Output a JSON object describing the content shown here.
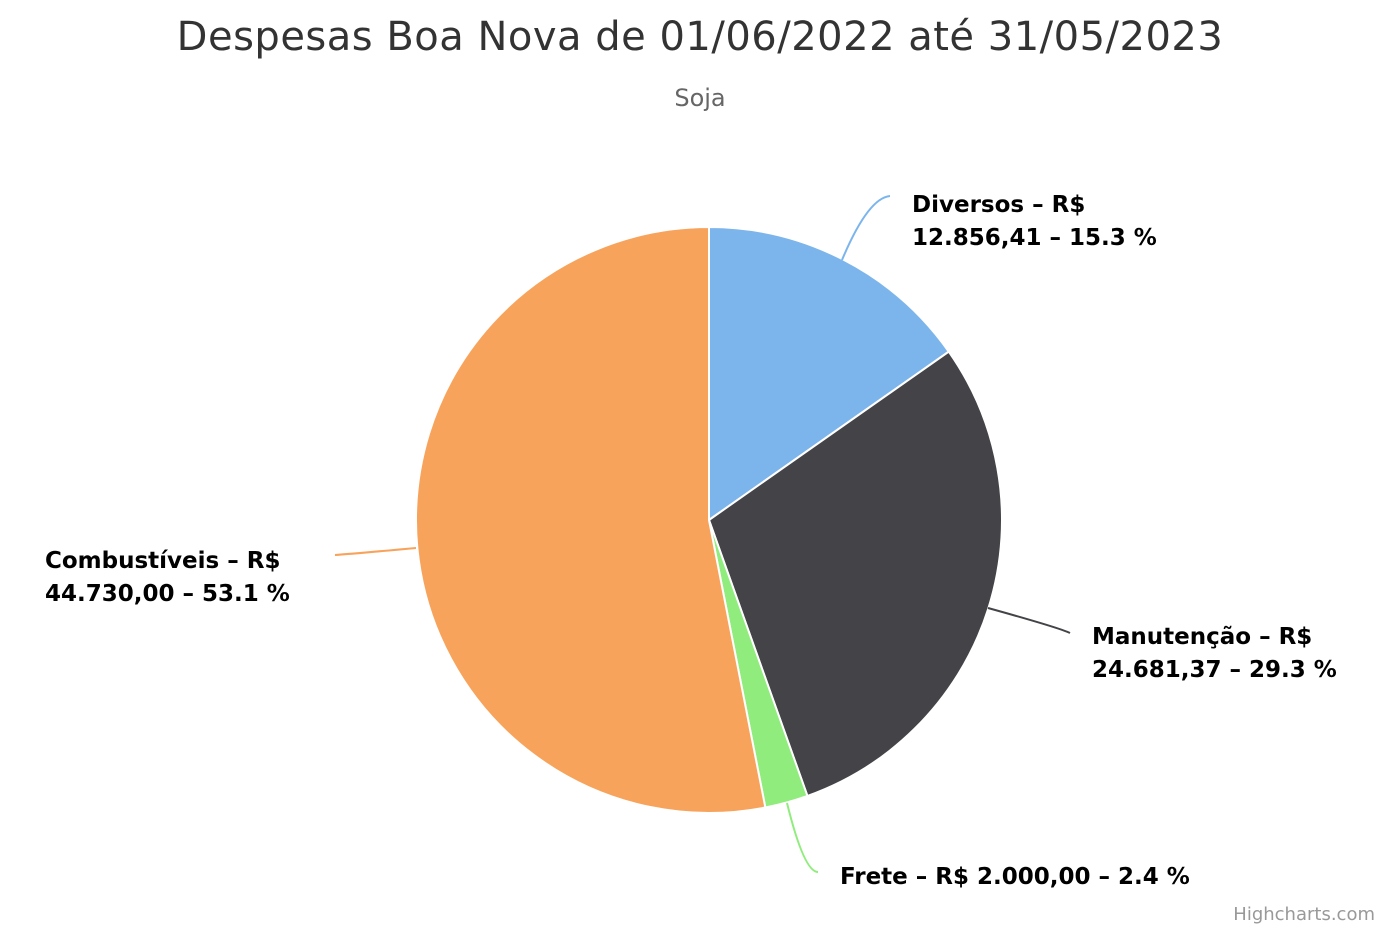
{
  "chart_data": {
    "type": "pie",
    "title": "Despesas Boa Nova de 01/06/2022 até 31/05/2023",
    "subtitle": "Soja",
    "series": [
      {
        "name": "Diversos",
        "value": 12856.41,
        "value_label": "R$ 12.856,41",
        "percent": 15.3,
        "color": "#7cb5ec",
        "label_lines": [
          "Diversos – R$",
          "12.856,41 – 15.3 %"
        ]
      },
      {
        "name": "Manutenção",
        "value": 24681.37,
        "value_label": "R$ 24.681,37",
        "percent": 29.3,
        "color": "#434348",
        "label_lines": [
          "Manutenção – R$",
          "24.681,37 – 29.3 %"
        ]
      },
      {
        "name": "Frete",
        "value": 2000.0,
        "value_label": "R$ 2.000,00",
        "percent": 2.4,
        "color": "#90ed7d",
        "label_lines": [
          "Frete – R$ 2.000,00 – 2.4 %"
        ]
      },
      {
        "name": "Combustíveis",
        "value": 44730.0,
        "value_label": "R$ 44.730,00",
        "percent": 53.1,
        "color": "#f7a35c",
        "label_lines": [
          "Combustíveis – R$",
          "44.730,00 – 53.1 %"
        ]
      }
    ]
  },
  "credits": "Highcharts.com"
}
